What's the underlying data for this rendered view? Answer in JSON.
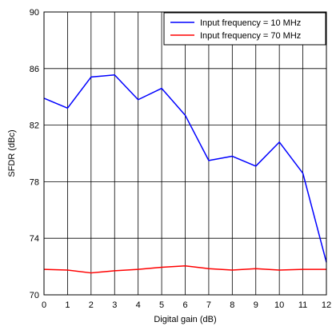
{
  "chart_data": {
    "type": "line",
    "xlabel": "Digital gain (dB)",
    "ylabel": "SFDR (dBc)",
    "xlim": [
      0,
      12
    ],
    "ylim": [
      70,
      90
    ],
    "x_ticks": [
      "0",
      "1",
      "2",
      "3",
      "4",
      "5",
      "6",
      "7",
      "8",
      "9",
      "10",
      "11",
      "12"
    ],
    "y_ticks": [
      "70",
      "74",
      "78",
      "82",
      "86",
      "90"
    ],
    "grid": true,
    "legend_position": "top-right",
    "x": [
      0,
      1,
      2,
      3,
      4,
      5,
      6,
      7,
      8,
      9,
      10,
      11,
      12
    ],
    "series": [
      {
        "name": "Input frequency = 10 MHz",
        "color": "#0000ff",
        "values": [
          83.9,
          83.2,
          85.4,
          85.55,
          83.8,
          84.6,
          82.7,
          79.5,
          79.8,
          79.1,
          80.8,
          78.6,
          72.3
        ]
      },
      {
        "name": "Input frequency = 70 MHz",
        "color": "#ff0000",
        "values": [
          71.8,
          71.75,
          71.55,
          71.7,
          71.8,
          71.95,
          72.05,
          71.85,
          71.75,
          71.85,
          71.75,
          71.8,
          71.8
        ]
      }
    ]
  }
}
